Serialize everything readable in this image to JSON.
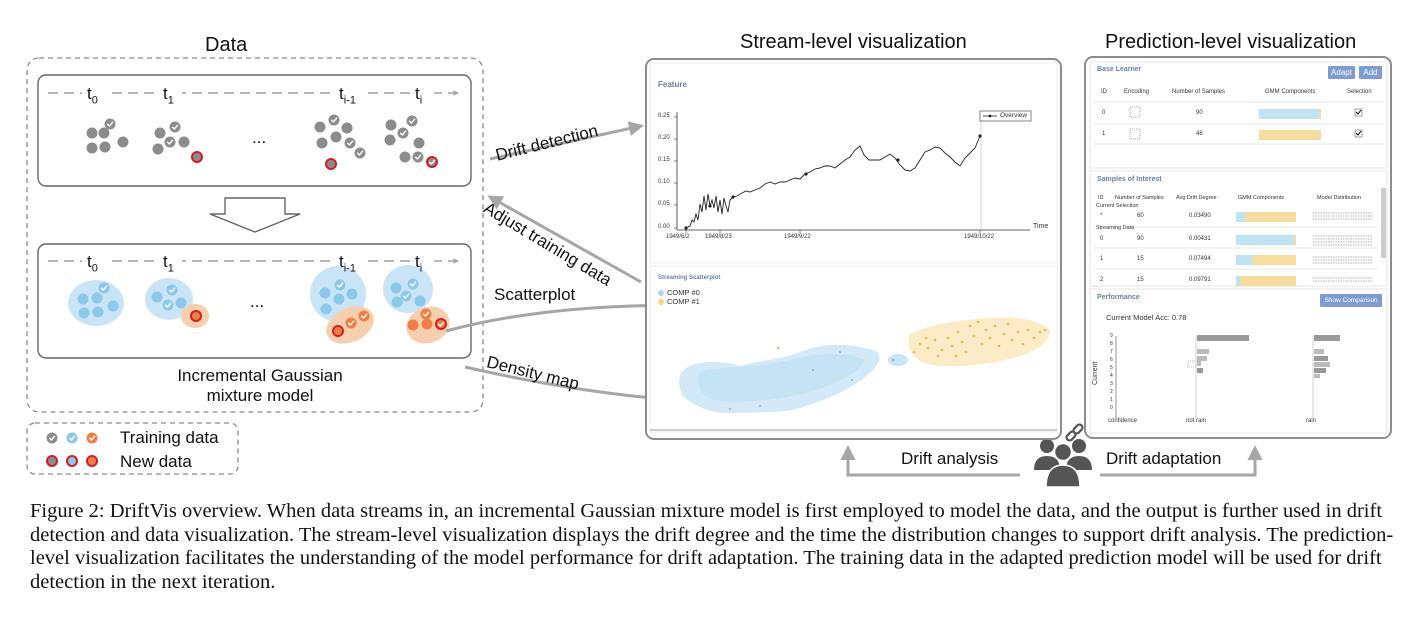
{
  "sections": {
    "data_title": "Data",
    "stream_title": "Stream-level visualization",
    "prediction_title": "Prediction-level visualization"
  },
  "time_labels": {
    "t0": "t",
    "t0_sub": "0",
    "t1": "t",
    "t1_sub": "1",
    "tim1": "t",
    "tim1_sub": "i-1",
    "ti": "t",
    "ti_sub": "i",
    "ellipsis": "..."
  },
  "gmm_label_line1": "Incremental Gaussian",
  "gmm_label_line2": "mixture model",
  "legend": {
    "training": "Training data",
    "new": "New data"
  },
  "arrows": {
    "drift_detection": "Drift detection",
    "adjust_training": "Adjust training data",
    "scatterplot": "Scatterplot",
    "density_map": "Density map",
    "drift_analysis": "Drift analysis",
    "drift_adaptation": "Drift adaptation"
  },
  "feature_panel": {
    "title": "Feature",
    "legend": "Overview",
    "x_axis_name": "Time",
    "y_ticks": [
      "0.25",
      "0.20",
      "0.15",
      "0.10",
      "0.05",
      "0.00"
    ],
    "x_ticks": [
      "1949/6/2",
      "1949/8/23",
      "1949/9/22",
      "1949/10/22"
    ]
  },
  "scatter_panel": {
    "title": "Streaming Scatterplot",
    "comp0": "COMP #0",
    "comp1": "COMP #1"
  },
  "base_learner": {
    "title": "Base Learner",
    "adapt_label": "Adapt",
    "add_label": "Add",
    "headers": [
      "ID",
      "Encoding",
      "Number of Samples",
      "GMM Components",
      "Selection"
    ],
    "rows": [
      {
        "id": "0",
        "samples": "90",
        "check": "✔"
      },
      {
        "id": "1",
        "samples": "48",
        "check": "✔"
      }
    ]
  },
  "samples_interest": {
    "title": "Samples of Interest",
    "headers": [
      "ID",
      "Number of Samples",
      "Avg Drift Degree",
      "GMM Components",
      "Model Distribution"
    ],
    "current_selection": "Current Selection",
    "streaming_data": "Streaming Data",
    "current_row": {
      "id": "*",
      "samples": "60",
      "drift": "0.03490"
    },
    "rows": [
      {
        "id": "0",
        "samples": "90",
        "drift": "0.00431"
      },
      {
        "id": "1",
        "samples": "15",
        "drift": "0.07494"
      },
      {
        "id": "2",
        "samples": "15",
        "drift": "0.09791"
      }
    ]
  },
  "performance": {
    "title": "Performance",
    "show_comparison": "Show Comparison",
    "accuracy": "Current Model Acc: 0.78",
    "y_label": "Current",
    "y_ticks": [
      "9",
      "8",
      "7",
      "6",
      "5",
      "4",
      "3",
      "2",
      "1",
      "0"
    ],
    "x_labels": [
      "confidence",
      "not rain",
      "rain"
    ]
  },
  "caption": "Figure 2: DriftVis overview. When data streams in, an incremental Gaussian mixture model is first employed to model the data, and the output is further used in drift detection and data visualization. The stream-level visualization displays the drift degree and the time the distribution changes to support drift analysis. The prediction-level visualization facilitates the understanding of the model performance for drift adaptation. The training data in the adapted prediction model will be used for drift detection in the next iteration.",
  "colors": {
    "blue_ellipse": "#c9e4f6",
    "blue_dot": "#8cc8ea",
    "orange_ellipse": "#f6cfae",
    "orange_dot": "#ef7f45",
    "gray_dot": "#8c8c8c",
    "new_ring": "#d11f2a",
    "arrow_gray": "#a6a6a6",
    "button_blue": "#7f9cd0",
    "yellow_bar": "#f7dca0",
    "light_blue_bar": "#bfe3f3"
  }
}
